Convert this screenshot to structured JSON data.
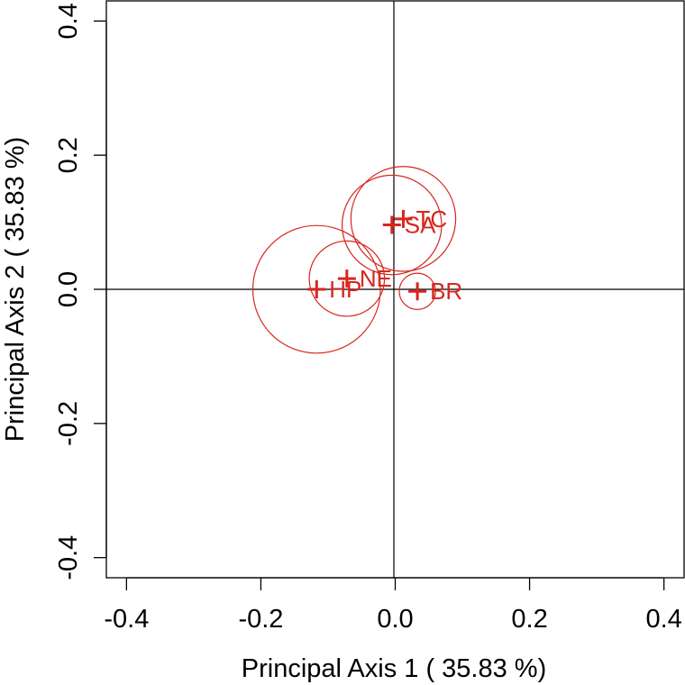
{
  "chart_data": {
    "type": "scatter",
    "title": "",
    "xlabel": "Principal Axis 1 ( 35.83 %)",
    "ylabel": "Principal Axis 2 ( 35.83 %)",
    "xlim": [
      -0.43,
      0.43
    ],
    "ylim": [
      -0.43,
      0.43
    ],
    "xticks": [
      -0.4,
      -0.2,
      0.0,
      0.2,
      0.4
    ],
    "yticks": [
      -0.4,
      -0.2,
      0.0,
      0.2,
      0.4
    ],
    "xtick_labels": [
      "-0.4",
      "-0.2",
      "0.0",
      "0.2",
      "0.4"
    ],
    "ytick_labels": [
      "-0.4",
      "-0.2",
      "0.0",
      "0.2",
      "0.4"
    ],
    "reference_lines": {
      "x": 0.0,
      "y": 0.0
    },
    "grid": false,
    "legend": "none",
    "point_color": "#d7261e",
    "points": [
      {
        "label": "HP",
        "x": -0.117,
        "y": 0.0,
        "radius": 0.095
      },
      {
        "label": "NE",
        "x": -0.072,
        "y": 0.016,
        "radius": 0.056
      },
      {
        "label": "BR",
        "x": 0.033,
        "y": -0.003,
        "radius": 0.027
      },
      {
        "label": "TC",
        "x": 0.012,
        "y": 0.105,
        "radius": 0.078
      },
      {
        "label": "SA",
        "x": -0.005,
        "y": 0.096,
        "radius": 0.074
      }
    ]
  }
}
